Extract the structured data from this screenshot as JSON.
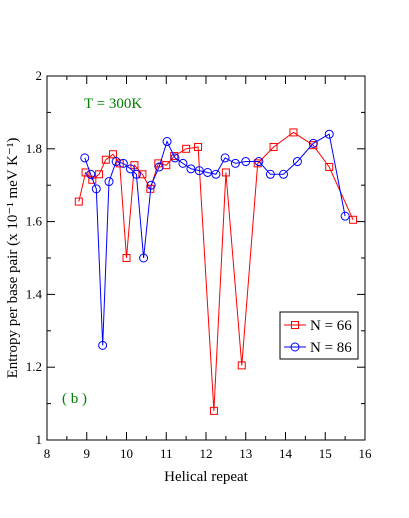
{
  "chart_data": {
    "type": "line",
    "xlabel": "Helical repeat",
    "ylabel": "Entropy per base pair (x 10⁻¹ meV K⁻¹)",
    "xlim": [
      8,
      16
    ],
    "ylim": [
      1,
      2
    ],
    "x_ticks": [
      8,
      9,
      10,
      11,
      12,
      13,
      14,
      15,
      16
    ],
    "y_ticks": [
      1,
      1.2,
      1.4,
      1.6,
      1.8,
      2
    ],
    "x_tick_labels": [
      "8",
      "9",
      "10",
      "11",
      "12",
      "13",
      "14",
      "15",
      "16"
    ],
    "y_tick_labels": [
      "1",
      "1.2",
      "1.4",
      "1.6",
      "1.8",
      "2"
    ],
    "grid": false,
    "legend_position": "middle-right",
    "annotations": [
      {
        "text": "T = 300K",
        "color": "#008000",
        "position": "top-left"
      },
      {
        "text": "( b )",
        "color": "#008000",
        "position": "bottom-left"
      }
    ],
    "series": [
      {
        "name": "N = 66",
        "color": "#ff0000",
        "marker": "square",
        "x": [
          8.8,
          8.97,
          9.14,
          9.31,
          9.48,
          9.66,
          9.83,
          10.0,
          10.2,
          10.4,
          10.6,
          10.8,
          11.0,
          11.2,
          11.5,
          11.8,
          12.2,
          12.5,
          12.9,
          13.3,
          13.7,
          14.2,
          14.7,
          15.1,
          15.7
        ],
        "y": [
          1.655,
          1.735,
          1.715,
          1.73,
          1.77,
          1.785,
          1.76,
          1.5,
          1.755,
          1.73,
          1.69,
          1.76,
          1.755,
          1.78,
          1.8,
          1.805,
          1.08,
          1.735,
          1.205,
          1.76,
          1.805,
          1.845,
          1.81,
          1.75,
          1.605
        ]
      },
      {
        "name": "N = 86",
        "color": "#0000ff",
        "marker": "circle",
        "x": [
          8.95,
          9.1,
          9.24,
          9.4,
          9.56,
          9.74,
          9.92,
          10.1,
          10.25,
          10.43,
          10.62,
          10.82,
          11.02,
          11.22,
          11.42,
          11.62,
          11.83,
          12.04,
          12.25,
          12.48,
          12.74,
          13.0,
          13.33,
          13.62,
          13.95,
          14.3,
          14.7,
          15.1,
          15.5
        ],
        "y": [
          1.775,
          1.73,
          1.69,
          1.26,
          1.71,
          1.765,
          1.76,
          1.745,
          1.73,
          1.5,
          1.7,
          1.75,
          1.82,
          1.775,
          1.76,
          1.745,
          1.74,
          1.735,
          1.73,
          1.775,
          1.76,
          1.765,
          1.765,
          1.73,
          1.73,
          1.765,
          1.815,
          1.84,
          1.615
        ]
      }
    ]
  }
}
